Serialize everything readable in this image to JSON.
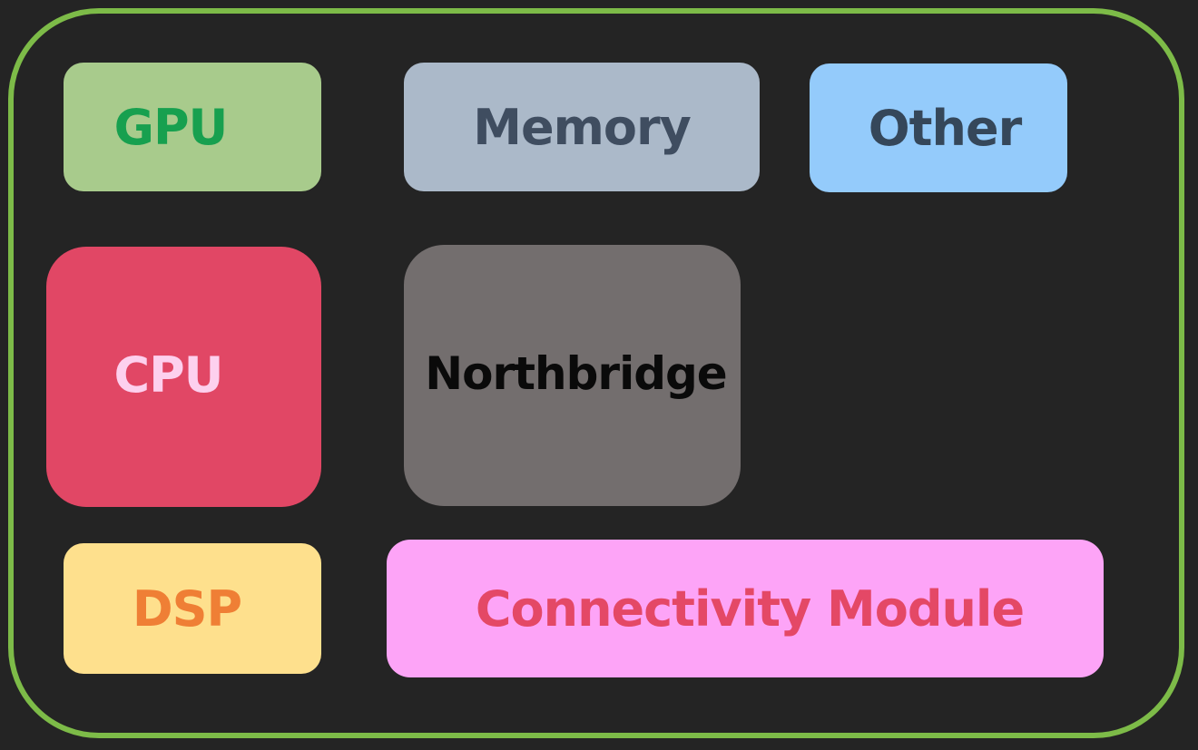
{
  "blocks": {
    "gpu": {
      "label": "GPU",
      "bg": "#a8cb8c",
      "fg": "#17a04f"
    },
    "memory": {
      "label": "Memory",
      "bg": "#abb9c9",
      "fg": "#3f4d60"
    },
    "other": {
      "label": "Other",
      "bg": "#94cbfb",
      "fg": "#35475a"
    },
    "cpu": {
      "label": "CPU",
      "bg": "#e14765",
      "fg": "#fdd0ee"
    },
    "northbridge": {
      "label": "Northbridge",
      "bg": "#736e6e",
      "fg": "#0a0a0a"
    },
    "dsp": {
      "label": "DSP",
      "bg": "#fee08d",
      "fg": "#ef7f35"
    },
    "connectivity": {
      "label": "Connectivity Module",
      "bg": "#fda4f7",
      "fg": "#e44866"
    }
  },
  "colors": {
    "background": "#242424",
    "soc_border": "#7dbb48"
  }
}
